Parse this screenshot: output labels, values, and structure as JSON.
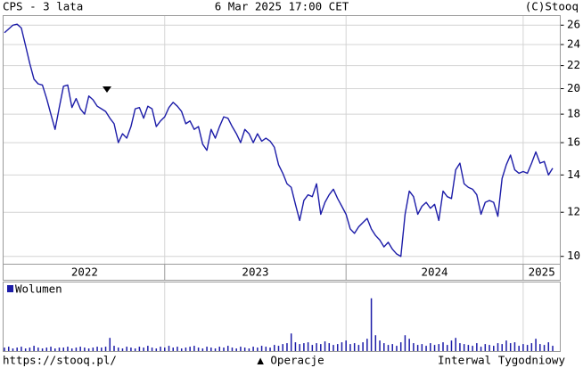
{
  "chart_data": {
    "type": "line",
    "title": "CPS - 3 lata",
    "subtitle": "6 Mar 2025 17:00 CET",
    "source": "(C)Stooq",
    "url": "https://stooq.pl/",
    "operations_label": "▲ Operacje",
    "interval": "Interwal Tygodniowy",
    "color": "#1c1ca8",
    "yscale": "log",
    "grid": true,
    "ylim": [
      9.7,
      27
    ],
    "yticks": [
      10,
      12,
      14,
      16,
      18,
      20,
      22,
      24,
      26
    ],
    "xlim": [
      0,
      130
    ],
    "xticks": [
      {
        "value": 0,
        "label": "2022"
      },
      {
        "value": 38,
        "label": "2023"
      },
      {
        "value": 81,
        "label": "2024"
      },
      {
        "value": 123,
        "label": "2025"
      }
    ],
    "values": [
      25.2,
      25.6,
      26.0,
      26.1,
      25.7,
      23.9,
      22.2,
      20.8,
      20.4,
      20.3,
      19.2,
      18.0,
      16.9,
      18.5,
      20.2,
      20.3,
      18.5,
      19.2,
      18.4,
      18.0,
      19.4,
      19.1,
      18.6,
      18.4,
      18.2,
      17.7,
      17.3,
      16.0,
      16.6,
      16.3,
      17.1,
      18.4,
      18.5,
      17.7,
      18.6,
      18.4,
      17.1,
      17.5,
      17.8,
      18.5,
      18.9,
      18.6,
      18.2,
      17.3,
      17.5,
      16.9,
      17.1,
      15.9,
      15.5,
      16.9,
      16.3,
      17.1,
      17.8,
      17.7,
      17.1,
      16.6,
      16.0,
      16.9,
      16.6,
      16.0,
      16.6,
      16.1,
      16.3,
      16.1,
      15.7,
      14.6,
      14.1,
      13.5,
      13.3,
      12.4,
      11.6,
      12.6,
      12.9,
      12.8,
      13.5,
      11.9,
      12.5,
      12.9,
      13.2,
      12.7,
      12.3,
      11.9,
      11.2,
      11.0,
      11.3,
      11.5,
      11.7,
      11.2,
      10.9,
      10.7,
      10.4,
      10.6,
      10.3,
      10.1,
      10.0,
      11.9,
      13.1,
      12.8,
      11.9,
      12.3,
      12.5,
      12.2,
      12.4,
      11.6,
      13.1,
      12.8,
      12.7,
      14.3,
      14.7,
      13.5,
      13.3,
      13.2,
      12.9,
      11.9,
      12.5,
      12.6,
      12.5,
      11.8,
      13.8,
      14.6,
      15.2,
      14.3,
      14.1,
      14.2,
      14.1,
      14.7,
      15.4,
      14.7,
      14.8,
      14.0,
      14.4
    ],
    "volume": {
      "name": "Wolumen",
      "color": "#1c1ca8",
      "legend": "top-left",
      "ylim": [
        0,
        78
      ],
      "values": [
        4,
        5,
        3,
        4,
        5,
        3,
        4,
        6,
        4,
        3,
        4,
        5,
        3,
        4,
        4,
        5,
        3,
        4,
        5,
        4,
        3,
        4,
        5,
        4,
        5,
        15,
        6,
        4,
        3,
        5,
        4,
        3,
        5,
        4,
        6,
        4,
        3,
        5,
        4,
        6,
        4,
        5,
        3,
        4,
        5,
        6,
        4,
        3,
        5,
        4,
        3,
        5,
        4,
        6,
        4,
        3,
        5,
        4,
        3,
        5,
        4,
        6,
        5,
        4,
        7,
        6,
        8,
        9,
        20,
        10,
        8,
        9,
        10,
        7,
        9,
        8,
        11,
        9,
        7,
        8,
        10,
        12,
        8,
        9,
        7,
        10,
        14,
        60,
        18,
        12,
        9,
        7,
        8,
        6,
        10,
        18,
        14,
        9,
        7,
        8,
        6,
        9,
        7,
        8,
        10,
        7,
        12,
        15,
        9,
        8,
        7,
        6,
        9,
        5,
        8,
        7,
        6,
        9,
        8,
        12,
        9,
        10,
        6,
        8,
        7,
        9,
        14,
        8,
        7,
        10,
        6
      ]
    }
  }
}
